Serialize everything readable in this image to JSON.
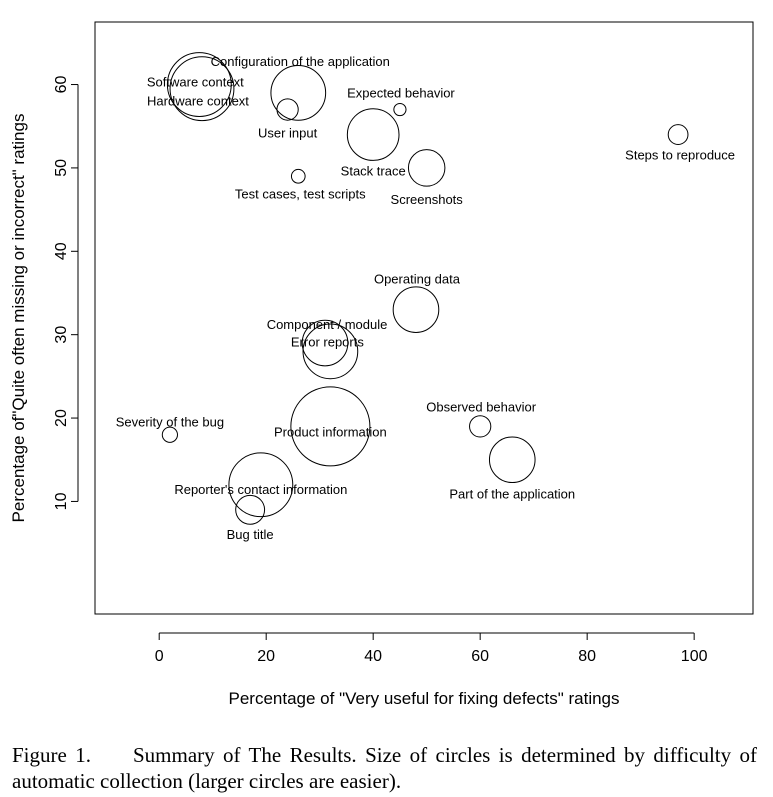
{
  "chart_data": {
    "type": "scatter",
    "subtype": "bubble",
    "xlabel": "Percentage of \"Very useful for fixing defects\" ratings",
    "ylabel": "Percentage of\"Quite often missing or incorrect\" ratings",
    "xlim": [
      -12,
      111
    ],
    "ylim": [
      -3.5,
      67.5
    ],
    "xticks": [
      "0",
      "20",
      "40",
      "60",
      "80",
      "100"
    ],
    "yticks": [
      "10",
      "20",
      "30",
      "40",
      "50",
      "60"
    ],
    "grid": false,
    "legend": "none",
    "size_meaning": "difficulty of automatic collection (larger circles are easier)",
    "points": [
      {
        "label": "Configuration of the application",
        "x": 26,
        "y": 59,
        "size": 3.6
      },
      {
        "label": "Software context",
        "x": 7.5,
        "y": 60,
        "size": 4.2
      },
      {
        "label": "Hardware context",
        "x": 8,
        "y": 59.5,
        "size": 4.2
      },
      {
        "label": "User input",
        "x": 24,
        "y": 57,
        "size": 1.4
      },
      {
        "label": "Expected behavior",
        "x": 45,
        "y": 57,
        "size": 0.8
      },
      {
        "label": "Stack trace",
        "x": 40,
        "y": 54,
        "size": 3.4
      },
      {
        "label": "Steps to reproduce",
        "x": 97,
        "y": 54,
        "size": 1.3
      },
      {
        "label": "Test cases, test scripts",
        "x": 26,
        "y": 49,
        "size": 0.9
      },
      {
        "label": "Screenshots",
        "x": 50,
        "y": 50,
        "size": 2.4
      },
      {
        "label": "Operating data",
        "x": 48,
        "y": 33,
        "size": 3.0
      },
      {
        "label": "Component / module",
        "x": 31,
        "y": 29,
        "size": 3.0
      },
      {
        "label": "Error reports",
        "x": 32,
        "y": 28,
        "size": 3.6
      },
      {
        "label": "Severity of the bug",
        "x": 2,
        "y": 18,
        "size": 1.0
      },
      {
        "label": "Product information",
        "x": 32,
        "y": 19,
        "size": 5.2
      },
      {
        "label": "Observed behavior",
        "x": 60,
        "y": 19,
        "size": 1.4
      },
      {
        "label": "Part of the application",
        "x": 66,
        "y": 15,
        "size": 3.0
      },
      {
        "label": "Reporter's contact information",
        "x": 19,
        "y": 12,
        "size": 4.2
      },
      {
        "label": "Bug title",
        "x": 17,
        "y": 9,
        "size": 1.9
      }
    ]
  },
  "caption": {
    "lead": "Figure 1.",
    "text": "Summary of The Results. Size of circles is determined by difficulty of automatic collection (larger circles are easier)."
  }
}
